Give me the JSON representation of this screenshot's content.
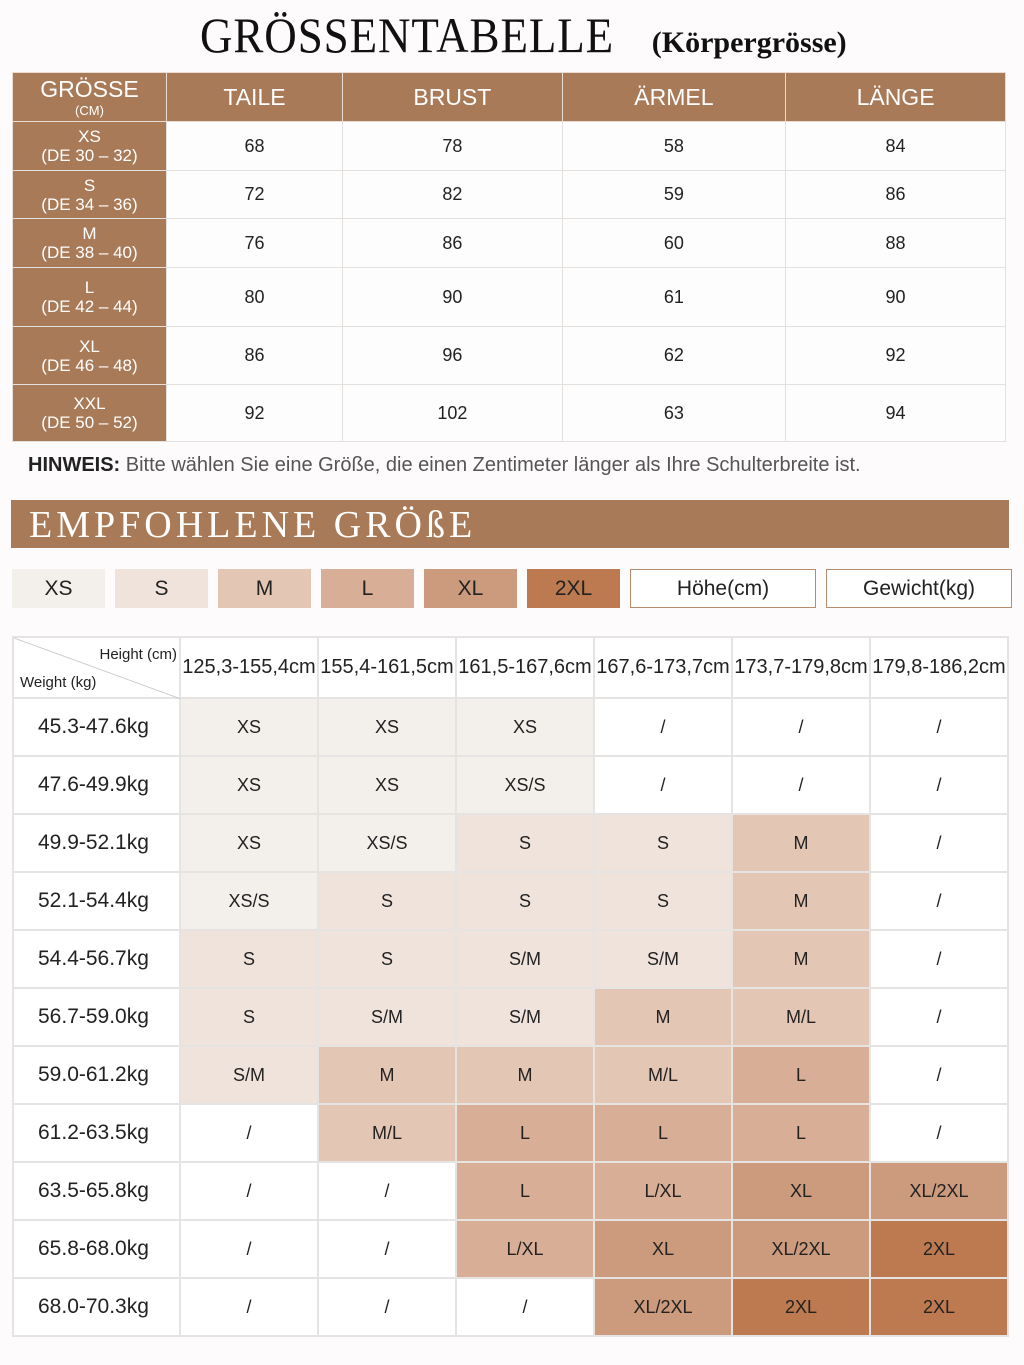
{
  "title": {
    "main": "GRÖSSENTABELLE",
    "sub": "(Körpergrösse)"
  },
  "size_table": {
    "headers": {
      "size": "GRÖSSE",
      "unit": "(CM)",
      "cols": [
        "TAILE",
        "BRUST",
        "ÄRMEL",
        "LÄNGE"
      ]
    },
    "rows": [
      {
        "size": "XS",
        "de": "(DE 30 – 32)",
        "values": [
          "68",
          "78",
          "58",
          "84"
        ]
      },
      {
        "size": "S",
        "de": "(DE 34 – 36)",
        "values": [
          "72",
          "82",
          "59",
          "86"
        ]
      },
      {
        "size": "M",
        "de": "(DE 38 – 40)",
        "values": [
          "76",
          "86",
          "60",
          "88"
        ]
      },
      {
        "size": "L",
        "de": "(DE 42 – 44)",
        "values": [
          "80",
          "90",
          "61",
          "90"
        ]
      },
      {
        "size": "XL",
        "de": "(DE 46 – 48)",
        "values": [
          "86",
          "96",
          "62",
          "92"
        ]
      },
      {
        "size": "XXL",
        "de": "(DE  50 – 52)",
        "values": [
          "92",
          "102",
          "63",
          "94"
        ]
      }
    ]
  },
  "hint": {
    "label": "HINWEIS:",
    "text": " Bitte wählen Sie eine Größe, die einen Zentimeter länger als Ihre Schulterbreite ist."
  },
  "banner": "EMPFOHLENE GRÖßE",
  "legend": {
    "sizes": [
      "XS",
      "S",
      "M",
      "L",
      "XL",
      "2XL"
    ],
    "height_label": "Höhe(cm)",
    "weight_label": "Gewicht(kg)"
  },
  "colors": {
    "header": "#a87a58",
    "XS": "#f3efeb",
    "S": "#f0e3dc",
    "M": "#e4c6b5",
    "L": "#d9ae97",
    "XL": "#cc9a7c",
    "2XL": "#bd7a50",
    "none": "#ffffff"
  },
  "rec_table": {
    "corner_height": "Height (cm)",
    "corner_weight": "Weight (kg)",
    "heights": [
      "125,3-155,4cm",
      "155,4-161,5cm",
      "161,5-167,6cm",
      "167,6-173,7cm",
      "173,7-179,8cm",
      "179,8-186,2cm"
    ],
    "rows": [
      {
        "weight": "45.3-47.6kg",
        "cells": [
          "XS",
          "XS",
          "XS",
          "/",
          "/",
          "/"
        ]
      },
      {
        "weight": "47.6-49.9kg",
        "cells": [
          "XS",
          "XS",
          "XS/S",
          "/",
          "/",
          "/"
        ]
      },
      {
        "weight": "49.9-52.1kg",
        "cells": [
          "XS",
          "XS/S",
          "S",
          "S",
          "M",
          "/"
        ]
      },
      {
        "weight": "52.1-54.4kg",
        "cells": [
          "XS/S",
          "S",
          "S",
          "S",
          "M",
          "/"
        ]
      },
      {
        "weight": "54.4-56.7kg",
        "cells": [
          "S",
          "S",
          "S/M",
          "S/M",
          "M",
          "/"
        ]
      },
      {
        "weight": "56.7-59.0kg",
        "cells": [
          "S",
          "S/M",
          "S/M",
          "M",
          "M/L",
          "/"
        ]
      },
      {
        "weight": "59.0-61.2kg",
        "cells": [
          "S/M",
          "M",
          "M",
          "M/L",
          "L",
          "/"
        ]
      },
      {
        "weight": "61.2-63.5kg",
        "cells": [
          "/",
          "M/L",
          "L",
          "L",
          "L",
          "/"
        ]
      },
      {
        "weight": "63.5-65.8kg",
        "cells": [
          "/",
          "/",
          "L",
          "L/XL",
          "XL",
          "XL/2XL"
        ]
      },
      {
        "weight": "65.8-68.0kg",
        "cells": [
          "/",
          "/",
          "L/XL",
          "XL",
          "XL/2XL",
          "2XL"
        ]
      },
      {
        "weight": "68.0-70.3kg",
        "cells": [
          "/",
          "/",
          "/",
          "XL/2XL",
          "2XL",
          "2XL"
        ]
      }
    ]
  }
}
